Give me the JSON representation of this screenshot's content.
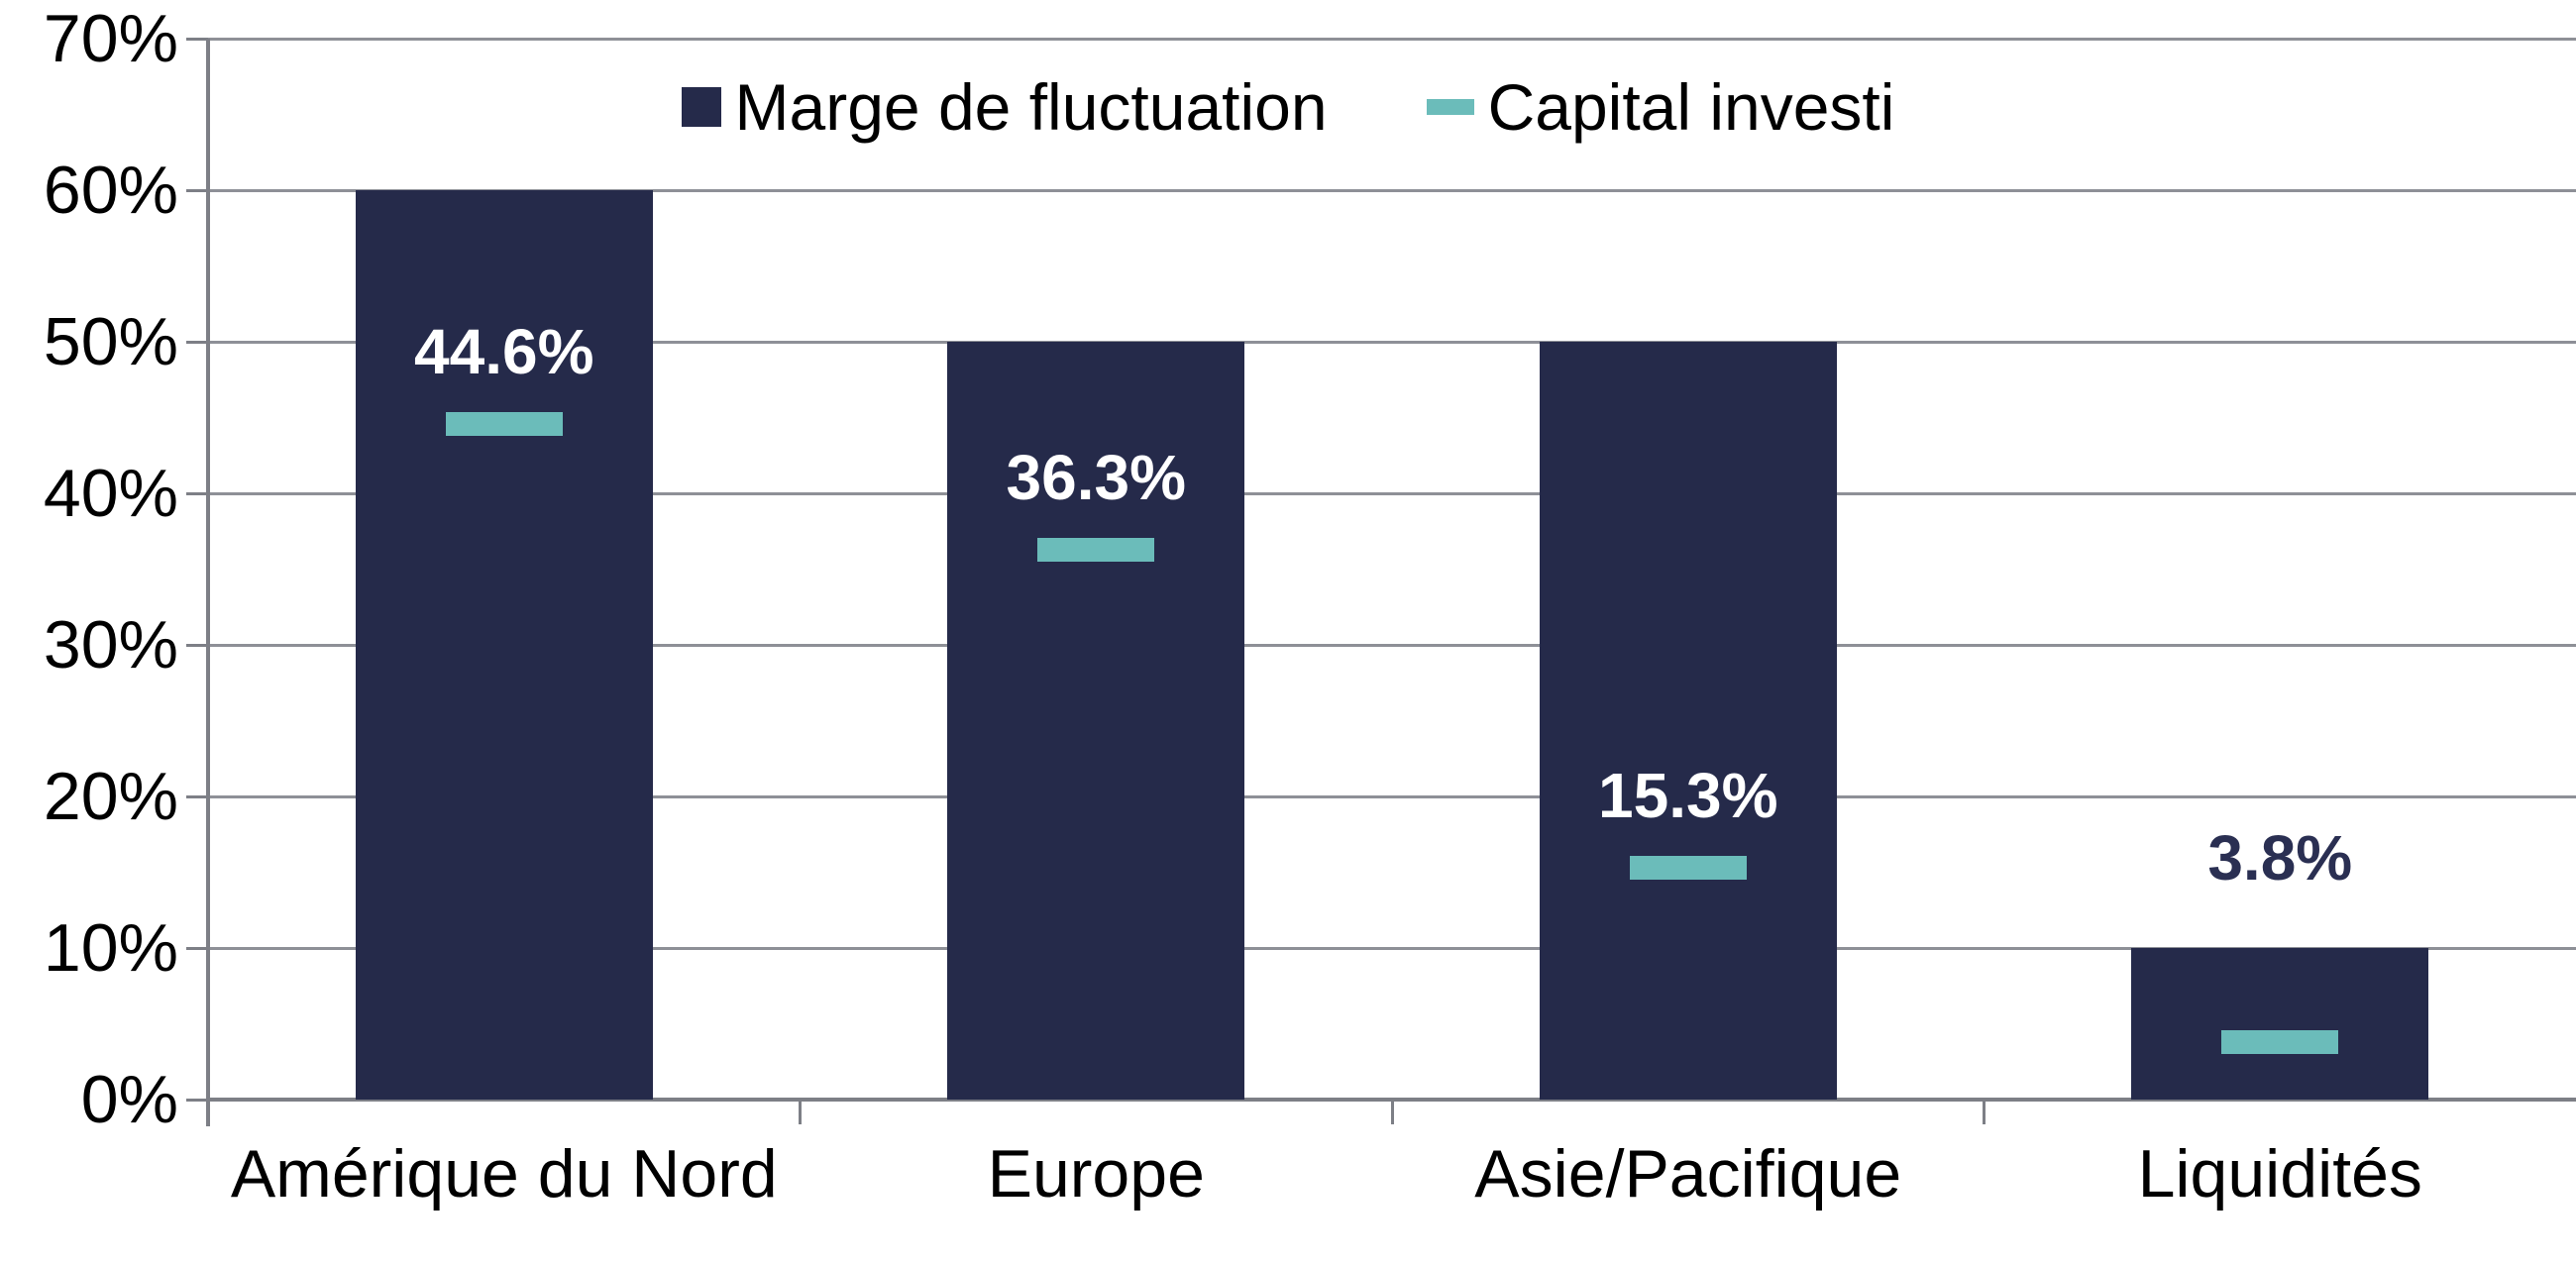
{
  "chart_data": {
    "type": "bar",
    "title": "",
    "categories": [
      "Amérique du Nord",
      "Europe",
      "Asie/Pacifique",
      "Liquidités"
    ],
    "series": [
      {
        "name": "Marge de fluctuation",
        "type": "bar",
        "color": "#252A4A",
        "values": [
          60,
          50,
          50,
          10
        ]
      },
      {
        "name": "Capital investi",
        "type": "dash-marker",
        "color": "#6BBCBA",
        "values": [
          44.6,
          36.3,
          15.3,
          3.8
        ]
      }
    ],
    "data_labels": [
      "44.6%",
      "36.3%",
      "15.3%",
      "3.8%"
    ],
    "y_ticks": [
      "0%",
      "10%",
      "20%",
      "30%",
      "40%",
      "50%",
      "60%",
      "70%"
    ],
    "ylim": [
      0,
      70
    ],
    "xlabel": "",
    "ylabel": "",
    "grid": true,
    "legend_position": "top-center"
  },
  "colors": {
    "bar": "#252A4A",
    "marker": "#6BBCBA",
    "gridline": "#8E9097",
    "axis": "#7D7F86",
    "label_on_bar": "#FFFFFF",
    "label_outside": "#2A2F52",
    "background": "#FFFFFF"
  }
}
